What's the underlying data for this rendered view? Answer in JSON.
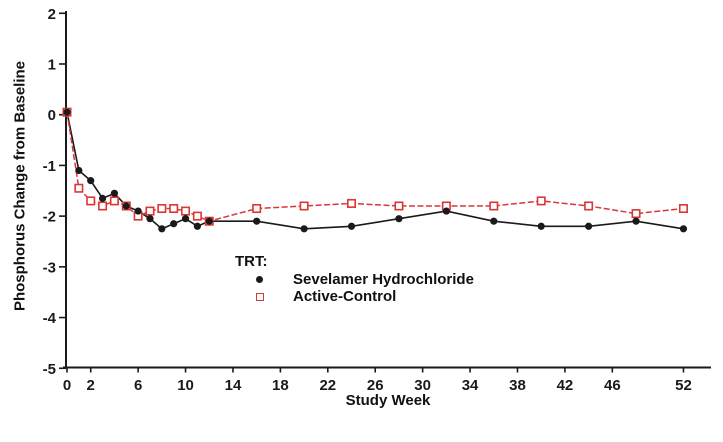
{
  "chart_data": {
    "type": "line",
    "title": "",
    "xlabel": "Study Week",
    "ylabel": "Phosphorus Change from Baseline",
    "legend_title": "TRT:",
    "legend_position": "inside-lower-center",
    "grid": false,
    "xlim": [
      0,
      54.5
    ],
    "ylim": [
      -5,
      2
    ],
    "x_ticks": [
      0,
      2,
      6,
      10,
      14,
      18,
      22,
      26,
      30,
      34,
      38,
      42,
      46,
      52
    ],
    "y_ticks": [
      2,
      1,
      0,
      -1,
      -2,
      -3,
      -4,
      -5
    ],
    "x": [
      0,
      1,
      2,
      3,
      4,
      5,
      6,
      7,
      8,
      9,
      10,
      11,
      12,
      16,
      20,
      24,
      28,
      32,
      36,
      40,
      44,
      48,
      52
    ],
    "series": [
      {
        "name": "Sevelamer Hydrochloride",
        "color": "#1a1a1a",
        "marker": "filled-circle",
        "line_style": "solid",
        "values": [
          0.05,
          -1.1,
          -1.3,
          -1.65,
          -1.55,
          -1.8,
          -1.9,
          -2.05,
          -2.25,
          -2.15,
          -2.05,
          -2.2,
          -2.1,
          -2.1,
          -2.25,
          -2.2,
          -2.05,
          -1.9,
          -2.1,
          -2.2,
          -2.2,
          -2.1,
          -2.25
        ]
      },
      {
        "name": "Active-Control",
        "color": "#d93636",
        "marker": "open-square",
        "line_style": "dashed",
        "values": [
          0.05,
          -1.45,
          -1.7,
          -1.8,
          -1.7,
          -1.8,
          -2.0,
          -1.9,
          -1.85,
          -1.85,
          -1.9,
          -2.0,
          -2.1,
          -1.85,
          -1.8,
          -1.75,
          -1.8,
          -1.8,
          -1.8,
          -1.7,
          -1.8,
          -1.95,
          -1.85
        ]
      }
    ],
    "axis_color": "#1a1a1a",
    "background_color": "#ffffff"
  }
}
